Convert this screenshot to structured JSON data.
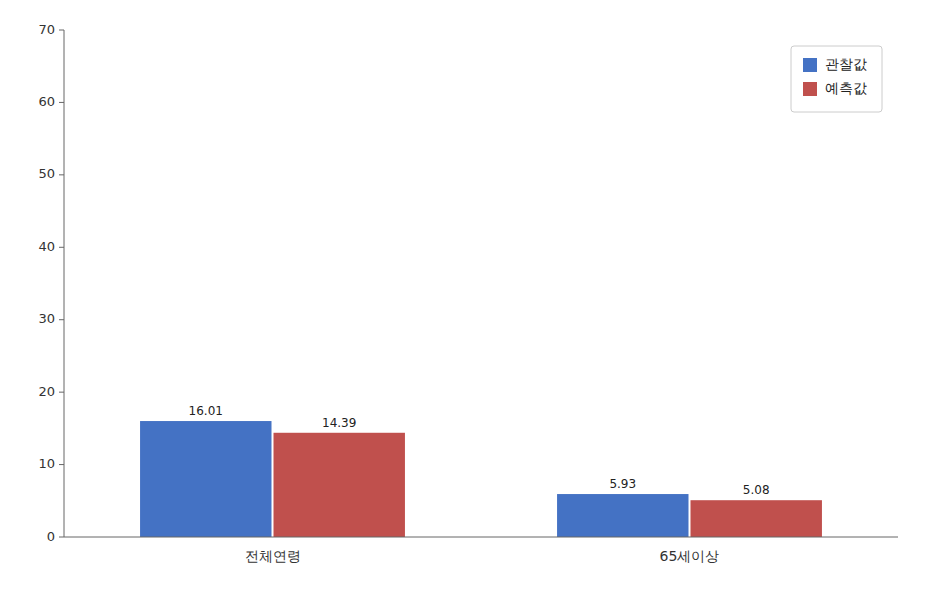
{
  "chart_data": {
    "type": "bar",
    "categories": [
      "전체연령",
      "65세이상"
    ],
    "series": [
      {
        "name": "관찰값",
        "color": "#4472C4",
        "values": [
          16.01,
          5.93
        ]
      },
      {
        "name": "예측값",
        "color": "#C0504D",
        "values": [
          14.39,
          5.08
        ]
      }
    ],
    "ylim": [
      0,
      70
    ],
    "yticks": [
      0,
      10,
      20,
      30,
      40,
      50,
      60,
      70
    ],
    "grid": false,
    "legend": "upper right",
    "data_labels": true
  }
}
